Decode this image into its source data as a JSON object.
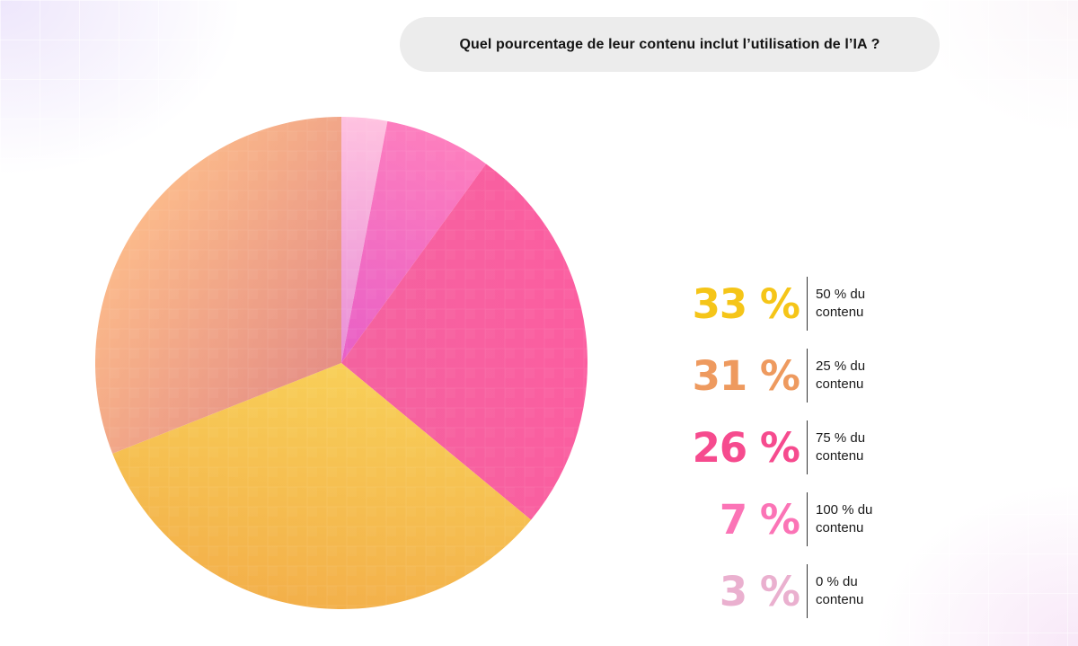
{
  "question": {
    "text": "Quel pourcentage de leur contenu inclut l’utilisation de l’IA ?"
  },
  "chart_data": {
    "type": "pie",
    "title": "Quel pourcentage de leur contenu inclut l’utilisation de l’IA ?",
    "slices": [
      {
        "label": "50 % du contenu",
        "value": 33,
        "display": "33 %",
        "color": "#f3b04a",
        "color2": "#f8cf58",
        "label_color": "#f5c518"
      },
      {
        "label": "25 % du contenu",
        "value": 31,
        "display": "31 %",
        "color": "#fbb98a",
        "color2": "#e58e85",
        "label_color": "#ee9a5f"
      },
      {
        "label": "75 % du contenu",
        "value": 26,
        "display": "26 %",
        "color": "#fb5ea0",
        "color2": "#f4629f",
        "label_color": "#f64b8e"
      },
      {
        "label": "100 % du contenu",
        "value": 7,
        "display": "7 %",
        "color": "#fd7ebe",
        "color2": "#e85fc6",
        "label_color": "#fb74b6"
      },
      {
        "label": "0 % du contenu",
        "value": 3,
        "display": "3 %",
        "color": "#ffc2e0",
        "color2": "#e88ed6",
        "label_color": "#eab0cf"
      }
    ],
    "legend_position": "right"
  },
  "legend": [
    {
      "value": "33 %",
      "line1": "50 % du",
      "line2": "contenu"
    },
    {
      "value": "31 %",
      "line1": "25 % du",
      "line2": "contenu"
    },
    {
      "value": "26 %",
      "line1": "75 % du",
      "line2": "contenu"
    },
    {
      "value": "7 %",
      "line1": "100 % du",
      "line2": "contenu"
    },
    {
      "value": "3 %",
      "line1": "0 % du",
      "line2": "contenu"
    }
  ]
}
